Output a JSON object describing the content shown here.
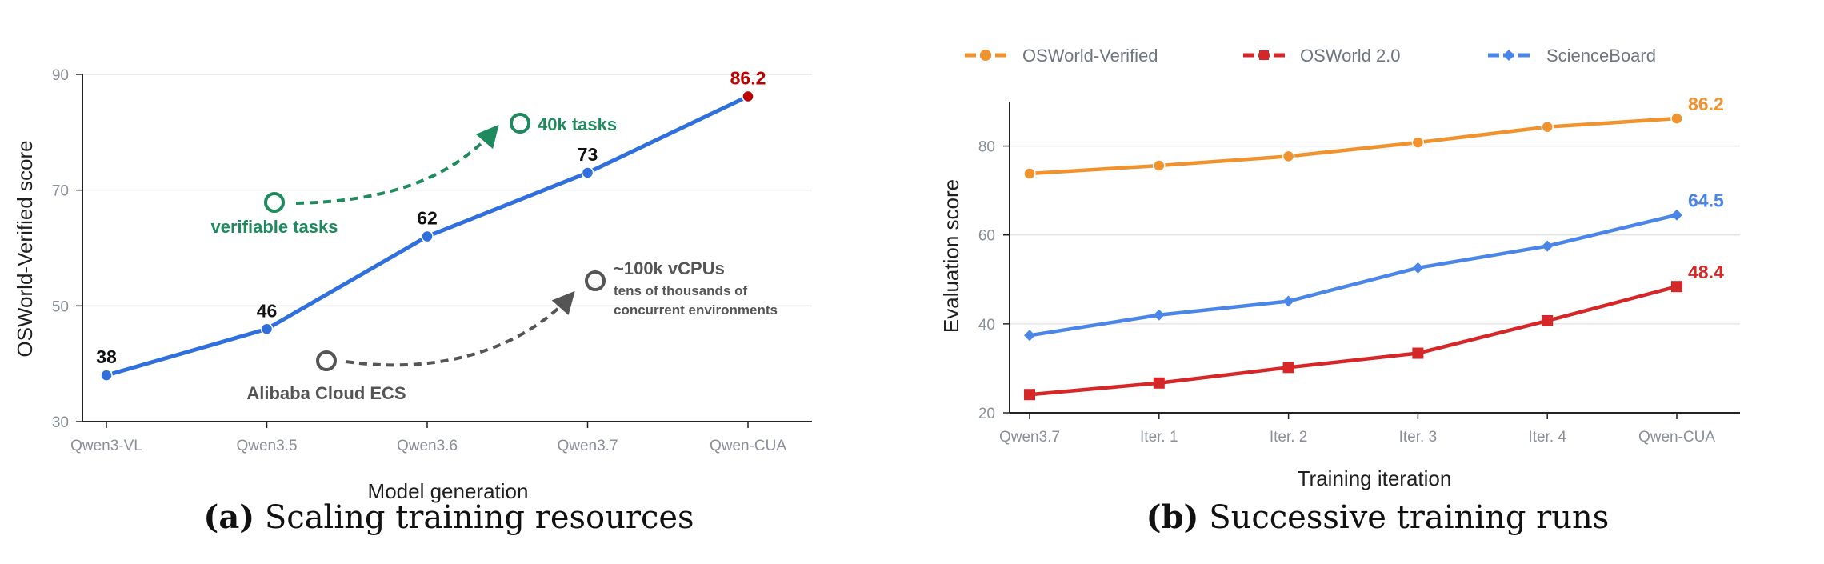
{
  "chart_data": [
    {
      "type": "line",
      "caption_letter": "(a)",
      "caption_text": "Scaling training resources",
      "xlabel": "Model generation",
      "ylabel": "OSWorld-Verified score",
      "ylim": [
        30,
        90
      ],
      "yticks": [
        30,
        50,
        70,
        90
      ],
      "grid": true,
      "categories": [
        "Qwen3-VL",
        "Qwen3.5",
        "Qwen3.6",
        "Qwen3.7",
        "Qwen-CUA"
      ],
      "series": [
        {
          "values": [
            38,
            46,
            62,
            73,
            86.2
          ],
          "color": "#2f6fde"
        }
      ],
      "data_labels": [
        "38",
        "46",
        "62",
        "73",
        "86.2"
      ],
      "highlight_color": "#c00000",
      "annotations": {
        "tasks_start": "verifiable tasks",
        "tasks_end": "40k tasks",
        "tasks_color": "#1e8a5e",
        "compute_start": "Alibaba Cloud ECS",
        "compute_end": "~100k vCPUs",
        "compute_end_sub1": "tens of thousands of",
        "compute_end_sub2": "concurrent environments",
        "compute_color": "#555555"
      }
    },
    {
      "type": "line",
      "caption_letter": "(b)",
      "caption_text": "Successive training runs",
      "xlabel": "Training iteration",
      "ylabel": "Evaluation score",
      "ylim": [
        20,
        90
      ],
      "yticks": [
        20,
        40,
        60,
        80
      ],
      "grid": true,
      "legend_placement": "top",
      "categories": [
        "Qwen3.7",
        "Iter. 1",
        "Iter. 2",
        "Iter. 3",
        "Iter. 4",
        "Qwen-CUA"
      ],
      "series": [
        {
          "name": "OSWorld-Verified",
          "values": [
            73.8,
            75.6,
            77.7,
            80.8,
            84.3,
            86.2
          ],
          "color": "#f0922e",
          "marker": "circle",
          "end_label": "86.2"
        },
        {
          "name": "OSWorld 2.0",
          "values": [
            24.1,
            26.7,
            30.2,
            33.4,
            40.7,
            48.4
          ],
          "color": "#d62728",
          "marker": "square",
          "end_label": "48.4"
        },
        {
          "name": "ScienceBoard",
          "values": [
            37.4,
            42.0,
            45.1,
            52.6,
            57.5,
            64.5
          ],
          "color": "#4a86e8",
          "marker": "diamond",
          "end_label": "64.5"
        }
      ]
    }
  ]
}
